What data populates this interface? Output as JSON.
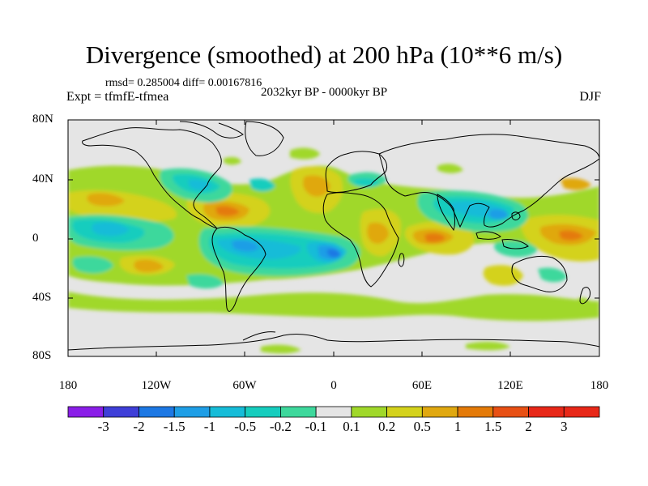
{
  "title": "Divergence (smoothed) at 200 hPa (10**6 m/s)",
  "stats": "rmsd= 0.285004 diff= 0.00167816",
  "experiment": "Expt = tfmfE-tfmea",
  "period": "2032kyr BP - 0000kyr BP",
  "season": "DJF",
  "lat_ticks": [
    "80N",
    "40N",
    "0",
    "40S",
    "80S"
  ],
  "lon_ticks": [
    "180",
    "120W",
    "60W",
    "0",
    "60E",
    "120E",
    "180"
  ],
  "colorbar": {
    "labels": [
      "-3",
      "-2",
      "-1.5",
      "-1",
      "-0.5",
      "-0.2",
      "-0.1",
      "0.1",
      "0.2",
      "0.5",
      "1",
      "1.5",
      "2",
      "3"
    ],
    "colors": [
      "#8a1ee8",
      "#3f3fd8",
      "#1d78e4",
      "#1e9ee6",
      "#16bcd8",
      "#16cdbe",
      "#3ed89c",
      "#e5e5e5",
      "#a0d82a",
      "#d4d21c",
      "#e0a810",
      "#e47a08",
      "#e85014",
      "#e82818"
    ]
  },
  "colors": {
    "background": "#e5e5e5",
    "coast": "#000000"
  }
}
